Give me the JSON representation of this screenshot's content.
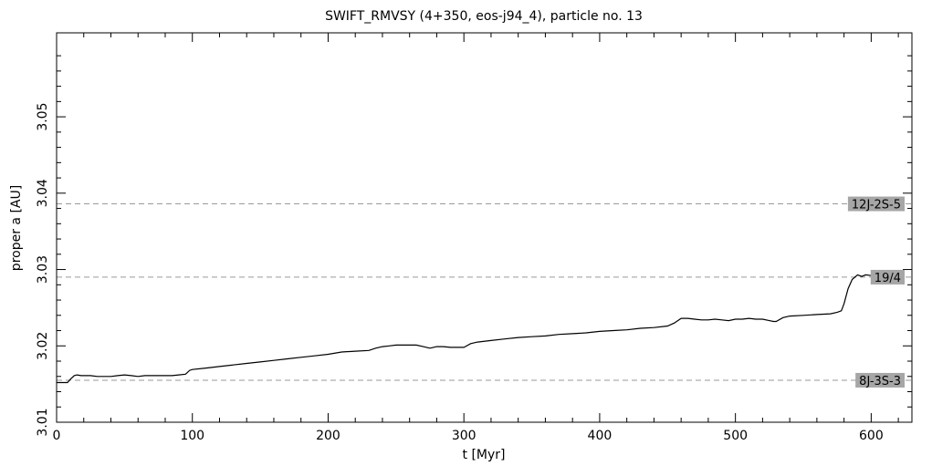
{
  "chart_data": {
    "type": "line",
    "title": "SWIFT_RMVSY (4+350, eos-j94_4), particle no. 13",
    "xlabel": "t [Myr]",
    "ylabel": "proper a [AU]",
    "xlim": [
      0,
      630
    ],
    "ylim": [
      3.01,
      3.061
    ],
    "x_ticks": [
      0,
      100,
      200,
      300,
      400,
      500,
      600
    ],
    "y_ticks": [
      3.01,
      3.02,
      3.03,
      3.04,
      3.05
    ],
    "x_tick_labels": [
      "0",
      "100",
      "200",
      "300",
      "400",
      "500",
      "600"
    ],
    "y_tick_labels": [
      "3.01",
      "3.02",
      "3.03",
      "3.04",
      "3.05"
    ],
    "grid": false,
    "resonances": [
      {
        "label": "12J-2S-5",
        "a": 3.0386
      },
      {
        "label": "19/4",
        "a": 3.029
      },
      {
        "label": "8J-3S-3",
        "a": 3.0155
      }
    ],
    "series": [
      {
        "x": [
          0,
          8,
          10,
          13,
          15,
          18,
          20,
          25,
          30,
          35,
          40,
          45,
          50,
          55,
          60,
          65,
          70,
          75,
          80,
          85,
          90,
          95,
          98,
          100,
          110,
          120,
          130,
          140,
          150,
          160,
          170,
          180,
          190,
          200,
          210,
          220,
          230,
          235,
          240,
          245,
          250,
          255,
          260,
          265,
          270,
          275,
          280,
          285,
          290,
          295,
          300,
          305,
          310,
          320,
          330,
          340,
          350,
          360,
          370,
          380,
          390,
          400,
          410,
          420,
          430,
          440,
          450,
          455,
          460,
          465,
          470,
          475,
          480,
          485,
          490,
          495,
          500,
          505,
          510,
          515,
          520,
          525,
          528,
          530,
          535,
          540,
          550,
          560,
          570,
          575,
          578,
          580,
          583,
          586,
          590,
          593,
          596,
          600,
          603,
          606,
          609,
          612,
          615,
          618
        ],
        "y": [
          3.0152,
          3.0152,
          3.0156,
          3.0161,
          3.0162,
          3.0161,
          3.0161,
          3.0161,
          3.016,
          3.016,
          3.016,
          3.0161,
          3.0162,
          3.0161,
          3.016,
          3.0161,
          3.0161,
          3.0161,
          3.0161,
          3.0161,
          3.0162,
          3.0163,
          3.0168,
          3.0169,
          3.0171,
          3.0173,
          3.0175,
          3.0177,
          3.0179,
          3.0181,
          3.0183,
          3.0185,
          3.0187,
          3.0189,
          3.0192,
          3.0193,
          3.0194,
          3.0197,
          3.0199,
          3.02,
          3.0201,
          3.0201,
          3.0201,
          3.0201,
          3.0199,
          3.0197,
          3.0199,
          3.0199,
          3.0198,
          3.0198,
          3.0198,
          3.0203,
          3.0205,
          3.0207,
          3.0209,
          3.0211,
          3.0212,
          3.0213,
          3.0215,
          3.0216,
          3.0217,
          3.0219,
          3.022,
          3.0221,
          3.0223,
          3.0224,
          3.0226,
          3.023,
          3.0236,
          3.0236,
          3.0235,
          3.0234,
          3.0234,
          3.0235,
          3.0234,
          3.0233,
          3.0235,
          3.0235,
          3.0236,
          3.0235,
          3.0235,
          3.0233,
          3.0232,
          3.0232,
          3.0237,
          3.0239,
          3.024,
          3.0241,
          3.0242,
          3.0244,
          3.0246,
          3.0255,
          3.0275,
          3.0287,
          3.0293,
          3.0291,
          3.0293,
          3.0292,
          3.0289,
          3.0292,
          3.0287,
          3.0291,
          3.029,
          3.0293
        ]
      }
    ]
  }
}
